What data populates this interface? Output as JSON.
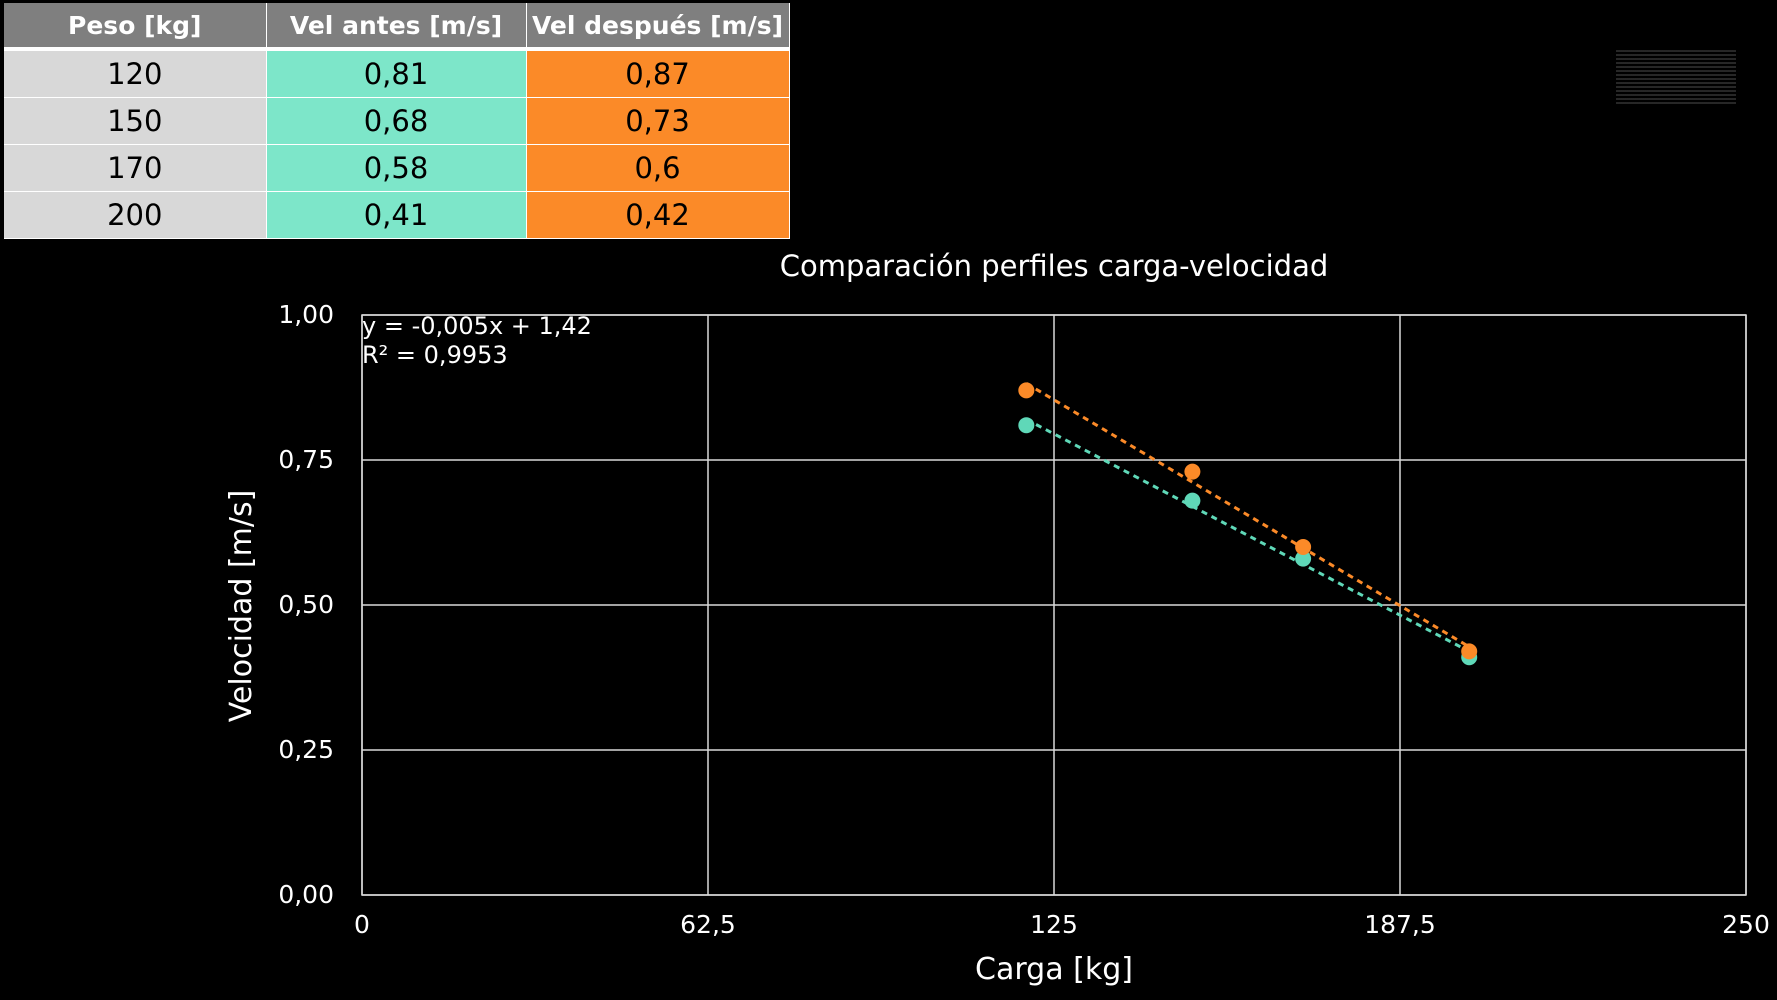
{
  "table": {
    "headers": [
      "Peso [kg]",
      "Vel antes [m/s]",
      "Vel después [m/s]"
    ],
    "rows": [
      [
        "120",
        "0,81",
        "0,87"
      ],
      [
        "150",
        "0,68",
        "0,73"
      ],
      [
        "170",
        "0,58",
        "0,6"
      ],
      [
        "200",
        "0,41",
        "0,42"
      ]
    ],
    "colors": {
      "header": "#7f7f7f",
      "peso": "#d8d8d8",
      "antes": "#7de6c9",
      "despues": "#fb8a28"
    }
  },
  "chart_data": {
    "type": "scatter",
    "title": "Comparación perfiles carga-velocidad",
    "xlabel": "Carga [kg]",
    "ylabel": "Velocidad [m/s]",
    "xlim": [
      0,
      250
    ],
    "ylim": [
      0,
      1.0
    ],
    "xticks": [
      0,
      62.5,
      125,
      187.5,
      250
    ],
    "yticks": [
      0,
      0.25,
      0.5,
      0.75,
      1.0
    ],
    "xtick_labels": [
      "0",
      "62,5",
      "125",
      "187,5",
      "250"
    ],
    "ytick_labels": [
      "0,00",
      "0,25",
      "0,50",
      "0,75",
      "1,00"
    ],
    "grid": true,
    "trendline_style": "dotted linear",
    "series": [
      {
        "x": [
          120,
          150,
          170,
          200
        ],
        "y": [
          0.81,
          0.68,
          0.58,
          0.41
        ],
        "color": "#5fd8b8"
      },
      {
        "x": [
          120,
          150,
          170,
          200
        ],
        "y": [
          0.87,
          0.73,
          0.6,
          0.42
        ],
        "color": "#fb8a28"
      }
    ],
    "annotation": {
      "equation": "y = -0,005x + 1,42",
      "r2": "R² = 0,9953"
    }
  }
}
